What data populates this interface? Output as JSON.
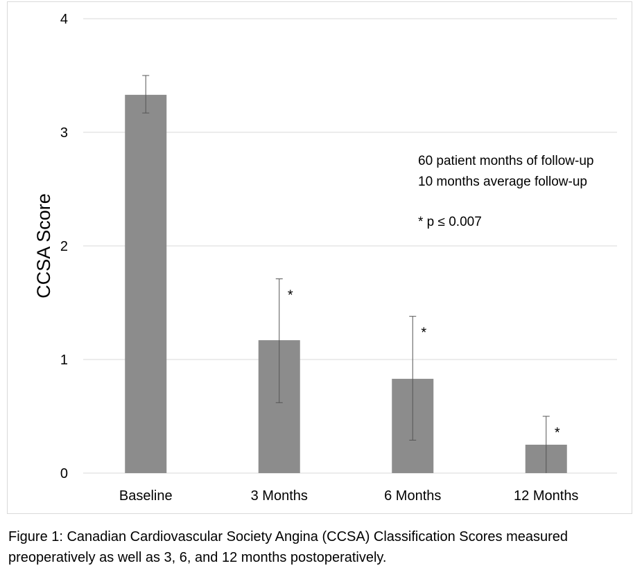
{
  "chart_data": {
    "type": "bar",
    "title": "",
    "xlabel": "",
    "ylabel": "CCSA Score",
    "ylim": [
      0,
      4
    ],
    "yticks": [
      "0",
      "1",
      "2",
      "3",
      "4"
    ],
    "grid": true,
    "categories": [
      "Baseline",
      "3 Months",
      "6 Months",
      "12 Months"
    ],
    "values": [
      3.33,
      1.17,
      0.83,
      0.25
    ],
    "error_upper": [
      3.5,
      1.71,
      1.38,
      0.5
    ],
    "error_lower": [
      3.17,
      0.62,
      0.29,
      0.0
    ],
    "significance": [
      "",
      "*",
      "*",
      "*"
    ],
    "annotations": [
      "60 patient months of follow-up",
      "10 months average follow-up",
      "* p ≤ 0.007"
    ],
    "bar_color": "#8c8c8c",
    "grid_color": "#d9d9d9"
  },
  "caption": {
    "line1": "Figure 1: Canadian Cardiovascular Society Angina (CCSA) Classification Scores measured",
    "line2": "preoperatively as well as 3, 6, and 12 months postoperatively."
  }
}
